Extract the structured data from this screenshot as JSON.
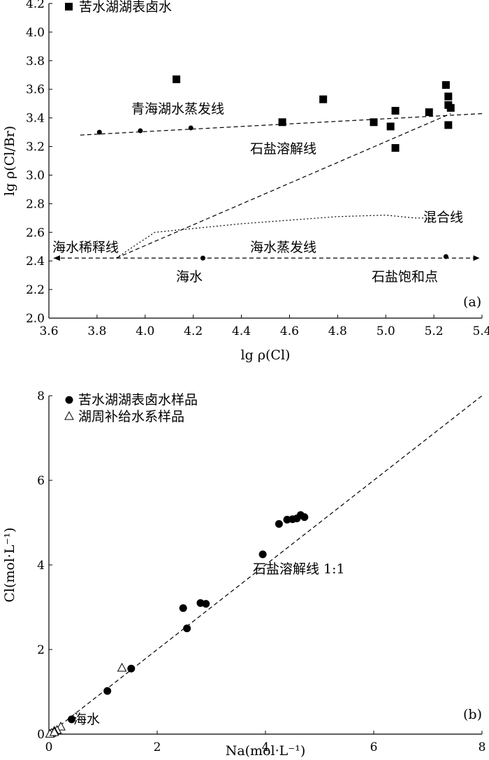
{
  "chart_data": [
    {
      "id": "a",
      "type": "scatter",
      "panel_label": "(a)",
      "xlabel": "lg ρ(Cl)",
      "ylabel": "lg ρ(Cl/Br)",
      "xlim": [
        3.6,
        5.4
      ],
      "ylim": [
        2.0,
        4.2
      ],
      "xticks": [
        3.6,
        3.8,
        4.0,
        4.2,
        4.4,
        4.6,
        4.8,
        5.0,
        5.2,
        5.4
      ],
      "yticks": [
        2.0,
        2.2,
        2.4,
        2.6,
        2.8,
        3.0,
        3.2,
        3.4,
        3.6,
        3.8,
        4.0,
        4.2
      ],
      "legend": [
        {
          "marker": "square",
          "label": "苦水湖湖表卤水"
        }
      ],
      "series": [
        {
          "name": "苦水湖湖表卤水",
          "marker": "square",
          "points": [
            [
              4.13,
              3.67
            ],
            [
              4.57,
              3.37
            ],
            [
              4.74,
              3.53
            ],
            [
              4.95,
              3.37
            ],
            [
              5.02,
              3.34
            ],
            [
              5.04,
              3.45
            ],
            [
              5.04,
              3.19
            ],
            [
              5.18,
              3.44
            ],
            [
              5.25,
              3.63
            ],
            [
              5.26,
              3.55
            ],
            [
              5.26,
              3.49
            ],
            [
              5.27,
              3.47
            ],
            [
              5.26,
              3.35
            ]
          ]
        }
      ],
      "reference_points": [
        [
          3.81,
          3.3
        ],
        [
          3.98,
          3.31
        ],
        [
          4.19,
          3.33
        ],
        [
          4.24,
          2.42
        ],
        [
          5.25,
          2.43
        ]
      ],
      "lines": [
        {
          "style": "dashed",
          "points": [
            [
              3.73,
              3.28
            ],
            [
              5.4,
              3.43
            ]
          ]
        },
        {
          "style": "dashed",
          "points": [
            [
              3.88,
              2.42
            ],
            [
              5.27,
              3.43
            ]
          ]
        },
        {
          "style": "dashed",
          "arrows": "both",
          "points": [
            [
              3.62,
              2.42
            ],
            [
              5.39,
              2.42
            ]
          ]
        },
        {
          "style": "dotted",
          "points": [
            [
              3.88,
              2.42
            ],
            [
              4.04,
              2.6
            ],
            [
              4.4,
              2.66
            ],
            [
              4.8,
              2.71
            ],
            [
              5.0,
              2.72
            ],
            [
              5.12,
              2.7
            ],
            [
              5.2,
              2.7
            ]
          ]
        }
      ],
      "annotations": {
        "evaporation_qinghai": "青海湖水蒸发线",
        "halite_dissolution": "石盐溶解线",
        "mixing": "混合线",
        "seawater_dilution": "海水稀释线",
        "seawater_evaporation": "海水蒸发线",
        "seawater": "海水",
        "halite_saturation": "石盐饱和点"
      }
    },
    {
      "id": "b",
      "type": "scatter",
      "panel_label": "(b)",
      "xlabel": "Na(mol·L⁻¹)",
      "ylabel": "Cl(mol·L⁻¹)",
      "xlim": [
        0,
        8
      ],
      "ylim": [
        0,
        8
      ],
      "xticks": [
        0,
        2,
        4,
        6,
        8
      ],
      "yticks": [
        0,
        2,
        4,
        6,
        8
      ],
      "legend": [
        {
          "marker": "circle",
          "label": "苦水湖湖表卤水样品"
        },
        {
          "marker": "triangle",
          "label": "湖周补给水系样品"
        }
      ],
      "series": [
        {
          "name": "苦水湖湖表卤水样品",
          "marker": "circle",
          "points": [
            [
              0.42,
              0.35
            ],
            [
              1.08,
              1.02
            ],
            [
              1.52,
              1.55
            ],
            [
              2.48,
              2.98
            ],
            [
              2.55,
              2.5
            ],
            [
              2.8,
              3.1
            ],
            [
              2.9,
              3.08
            ],
            [
              3.95,
              4.25
            ],
            [
              4.25,
              4.97
            ],
            [
              4.4,
              5.07
            ],
            [
              4.5,
              5.08
            ],
            [
              4.58,
              5.1
            ],
            [
              4.65,
              5.18
            ],
            [
              4.72,
              5.13
            ]
          ]
        },
        {
          "name": "湖周补给水系样品",
          "marker": "triangle",
          "points": [
            [
              1.35,
              1.57
            ],
            [
              0.22,
              0.18
            ],
            [
              0.15,
              0.1
            ],
            [
              0.1,
              0.08
            ],
            [
              0.05,
              0.03
            ],
            [
              0.02,
              0.01
            ],
            [
              0.1,
              0.05
            ]
          ]
        }
      ],
      "lines": [
        {
          "style": "dashed",
          "points": [
            [
              0,
              0
            ],
            [
              8,
              8
            ]
          ]
        }
      ],
      "annotations": {
        "halite_line": "石盐溶解线 1:1",
        "seawater": "海水"
      }
    }
  ]
}
